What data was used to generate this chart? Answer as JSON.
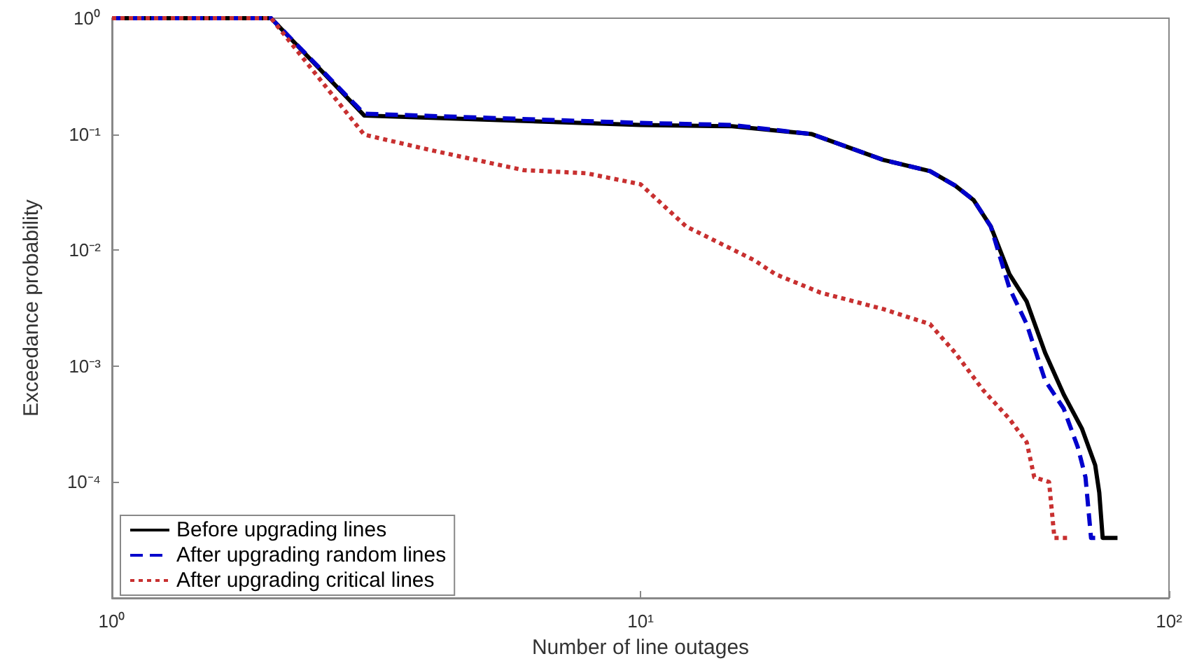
{
  "chart_data": {
    "type": "line",
    "xlabel": "Number of line outages",
    "ylabel": "Exceedance probability",
    "log": "xy",
    "grid": false,
    "marker": "none",
    "legend": "bottom left",
    "xlim": [
      1,
      100
    ],
    "xticks": [
      {
        "value": 1,
        "label": "10⁰"
      },
      {
        "value": 10,
        "label": "10¹"
      },
      {
        "value": 100,
        "label": "10²"
      }
    ],
    "ylim": [
      1e-05,
      1
    ],
    "yticks": [
      {
        "value": 0.0001,
        "label": "10⁻⁴"
      },
      {
        "value": 0.001,
        "label": "10⁻³"
      },
      {
        "value": 0.01,
        "label": "10⁻²"
      },
      {
        "value": 0.1,
        "label": "10⁻¹"
      },
      {
        "value": 1,
        "label": "10⁰"
      }
    ],
    "series": [
      {
        "name": "Before upgrading lines",
        "color": "#000000",
        "line_style": "solid",
        "x": [
          1,
          2,
          3,
          10,
          14.9,
          21.1,
          28.8,
          35.3,
          39.4,
          42.7,
          46,
          49.9,
          53.8,
          58.3,
          63.2,
          68.4,
          72.5,
          73.8,
          74.9,
          79.9
        ],
        "values": [
          1,
          1,
          0.145,
          0.12,
          0.117,
          0.1,
          0.06,
          0.048,
          0.036,
          0.027,
          0.016,
          0.0062,
          0.0036,
          0.0013,
          0.00057,
          0.00029,
          0.00014,
          8.1e-05,
          3.3e-05,
          3.3e-05
        ]
      },
      {
        "name": "After upgrading random lines",
        "color": "#0000cc",
        "line_style": "dashed",
        "x": [
          1,
          2,
          3,
          10,
          14.9,
          21.1,
          28.8,
          35.3,
          39.4,
          42.7,
          46,
          49.9,
          53.8,
          58.3,
          63.2,
          67.2,
          69.5,
          71.2,
          72.5
        ],
        "values": [
          1,
          1,
          0.15,
          0.125,
          0.12,
          0.1,
          0.06,
          0.048,
          0.036,
          0.027,
          0.016,
          0.0047,
          0.0023,
          0.00075,
          0.00043,
          0.0002,
          0.00011,
          3.3e-05,
          3.3e-05
        ]
      },
      {
        "name": "After upgrading critical lines",
        "color": "#c83030",
        "line_style": "dotted",
        "x": [
          1,
          2,
          3,
          4,
          6,
          7.9,
          10,
          12.2,
          16.4,
          18,
          21.9,
          28.8,
          35.3,
          39.4,
          44.5,
          49.9,
          53.8,
          55.6,
          59.3,
          60.7,
          64.3
        ],
        "values": [
          1,
          1,
          0.099,
          0.073,
          0.049,
          0.046,
          0.037,
          0.016,
          0.0082,
          0.0062,
          0.0043,
          0.0031,
          0.0023,
          0.0013,
          0.00062,
          0.00035,
          0.00022,
          0.00011,
          0.0001,
          3.3e-05,
          3.3e-05
        ]
      }
    ]
  }
}
